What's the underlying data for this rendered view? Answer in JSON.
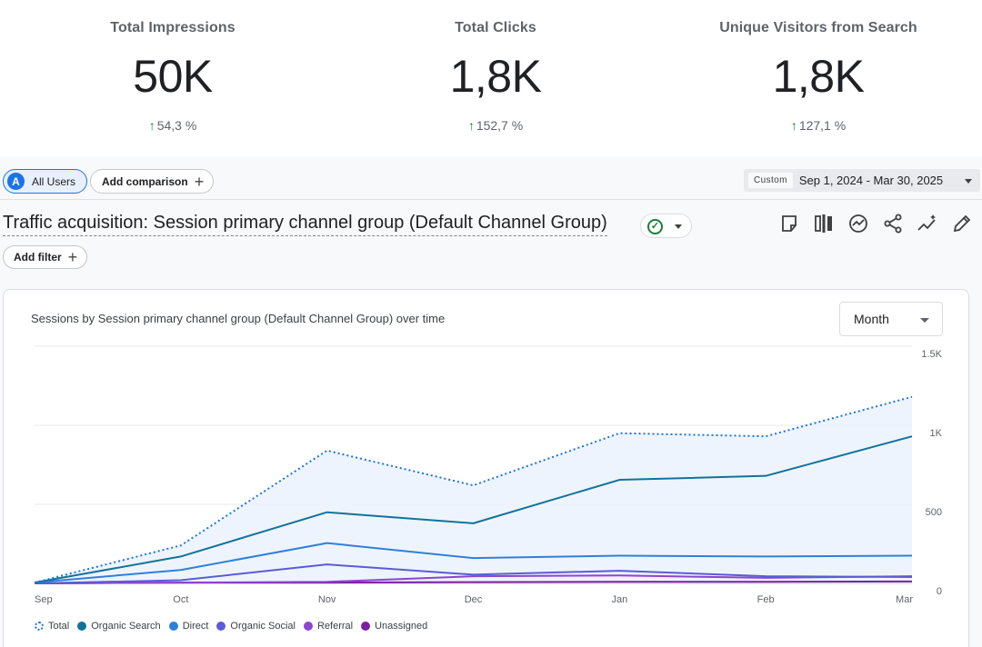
{
  "kpis": [
    {
      "label": "Total Impressions",
      "value": "50K",
      "change": "54,3 %"
    },
    {
      "label": "Total Clicks",
      "value": "1,8K",
      "change": "152,7 %"
    },
    {
      "label": "Unique Visitors from Search",
      "value": "1,8K",
      "change": "127,1 %"
    }
  ],
  "comparison": {
    "user_initial": "A",
    "user_segment": "All Users",
    "add_comparison": "Add comparison"
  },
  "date_range": {
    "tag": "Custom",
    "range": "Sep 1, 2024 - Mar 30, 2025"
  },
  "report": {
    "title": "Traffic acquisition: Session primary channel group (Default Channel Group)",
    "add_filter": "Add filter"
  },
  "chart_card": {
    "title": "Sessions by Session primary channel group (Default Channel Group) over time",
    "granularity": "Month"
  },
  "chart_data": {
    "type": "line",
    "categories": [
      "Sep",
      "Oct",
      "Nov",
      "Dec",
      "Jan",
      "Feb",
      "Mar"
    ],
    "y_ticks": [
      "0",
      "500",
      "1K",
      "1.5K"
    ],
    "ylim": [
      0,
      1500
    ],
    "grid": true,
    "legend_position": "bottom",
    "series": [
      {
        "name": "Total",
        "color": "#1a73e8",
        "style": "dotted",
        "values": [
          5,
          240,
          840,
          620,
          950,
          930,
          1180
        ]
      },
      {
        "name": "Organic Search",
        "color": "#12739a",
        "values": [
          5,
          170,
          450,
          380,
          655,
          680,
          930
        ]
      },
      {
        "name": "Direct",
        "color": "#2f80db",
        "values": [
          5,
          85,
          255,
          160,
          175,
          170,
          175
        ]
      },
      {
        "name": "Organic Social",
        "color": "#5b5bd6",
        "values": [
          0,
          20,
          120,
          55,
          80,
          45,
          40
        ]
      },
      {
        "name": "Referral",
        "color": "#8d44d0",
        "values": [
          0,
          5,
          10,
          45,
          50,
          35,
          45
        ]
      },
      {
        "name": "Unassigned",
        "color": "#7b1fa2",
        "values": [
          0,
          5,
          5,
          8,
          10,
          10,
          12
        ]
      }
    ]
  }
}
